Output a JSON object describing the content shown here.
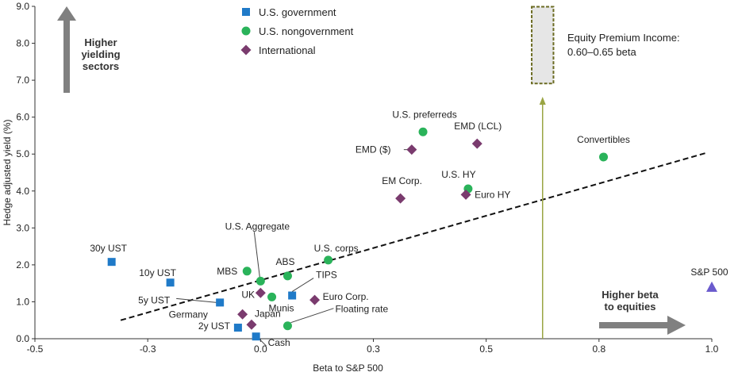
{
  "chart_data": {
    "type": "scatter",
    "xlabel": "Beta to S&P 500",
    "ylabel": "Hedge adjusted yield (%)",
    "xlim": [
      -0.5,
      1.0
    ],
    "ylim": [
      0.0,
      9.0
    ],
    "x_ticks": [
      "-0.5",
      "-0.3",
      "0.0",
      "0.3",
      "0.5",
      "0.8",
      "1.0"
    ],
    "x_tick_values": [
      -0.5,
      -0.25,
      0.0,
      0.25,
      0.5,
      0.75,
      1.0
    ],
    "y_ticks": [
      "0.0",
      "1.0",
      "2.0",
      "3.0",
      "4.0",
      "5.0",
      "6.0",
      "7.0",
      "8.0",
      "9.0"
    ],
    "y_tick_values": [
      0,
      1,
      2,
      3,
      4,
      5,
      6,
      7,
      8,
      9
    ],
    "legend": [
      {
        "name": "U.S. government",
        "shape": "square",
        "color": "#1f7ac8"
      },
      {
        "name": "U.S. nongovernment",
        "shape": "circle",
        "color": "#2ab35a"
      },
      {
        "name": "International",
        "shape": "diamond",
        "color": "#7a3b6e"
      }
    ],
    "series": [
      {
        "name": "U.S. government",
        "shape": "square",
        "color": "#1f7ac8",
        "points": [
          {
            "label": "30y UST",
            "x": -0.33,
            "y": 2.08
          },
          {
            "label": "10y UST",
            "x": -0.2,
            "y": 1.52
          },
          {
            "label": "5y UST",
            "x": -0.09,
            "y": 0.98
          },
          {
            "label": "2y UST",
            "x": -0.05,
            "y": 0.3
          },
          {
            "label": "TIPS",
            "x": 0.07,
            "y": 1.17
          },
          {
            "label": "Cash",
            "x": -0.01,
            "y": 0.06
          }
        ]
      },
      {
        "name": "U.S. nongovernment",
        "shape": "circle",
        "color": "#2ab35a",
        "points": [
          {
            "label": "MBS",
            "x": -0.03,
            "y": 1.83
          },
          {
            "label": "U.S. Aggregate",
            "x": 0.0,
            "y": 1.56
          },
          {
            "label": "ABS",
            "x": 0.06,
            "y": 1.7
          },
          {
            "label": "U.S. corps",
            "x": 0.15,
            "y": 2.13
          },
          {
            "label": "Munis",
            "x": 0.025,
            "y": 1.13
          },
          {
            "label": "Floating rate",
            "x": 0.06,
            "y": 0.35
          },
          {
            "label": "U.S. preferreds",
            "x": 0.36,
            "y": 5.6
          },
          {
            "label": "U.S. HY",
            "x": 0.46,
            "y": 4.06
          },
          {
            "label": "Convertibles",
            "x": 0.76,
            "y": 4.92
          }
        ]
      },
      {
        "name": "International",
        "shape": "diamond",
        "color": "#7a3b6e",
        "points": [
          {
            "label": "UK",
            "x": 0.0,
            "y": 1.24
          },
          {
            "label": "Germany",
            "x": -0.04,
            "y": 0.66
          },
          {
            "label": "Japan",
            "x": -0.02,
            "y": 0.38
          },
          {
            "label": "Euro Corp.",
            "x": 0.12,
            "y": 1.05
          },
          {
            "label": "EM Corp.",
            "x": 0.31,
            "y": 3.8
          },
          {
            "label": "EMD ($)",
            "x": 0.335,
            "y": 5.12
          },
          {
            "label": "EMD (LCL)",
            "x": 0.48,
            "y": 5.28
          },
          {
            "label": "Euro HY",
            "x": 0.455,
            "y": 3.9
          }
        ]
      },
      {
        "name": "S&P 500",
        "shape": "triangle",
        "color": "#6a5acd",
        "points": [
          {
            "label": "S&P 500",
            "x": 1.0,
            "y": 1.4
          }
        ]
      }
    ],
    "trendline": {
      "x": [
        -0.31,
        0.99
      ],
      "y": [
        0.5,
        5.04
      ]
    },
    "equity_premium": {
      "label_line1": "Equity Premium Income:",
      "label_line2": "0.60–0.65 beta",
      "x_range": [
        0.6,
        0.65
      ],
      "y_range": [
        6.9,
        9.0
      ],
      "arrow_x": 0.625,
      "arrow_from_y": 0.0,
      "arrow_to_y": 6.55
    },
    "annotations": {
      "up_arrow_text": [
        "Higher",
        "yielding",
        "sectors"
      ],
      "right_arrow_text": [
        "Higher beta",
        "to equities"
      ]
    }
  }
}
